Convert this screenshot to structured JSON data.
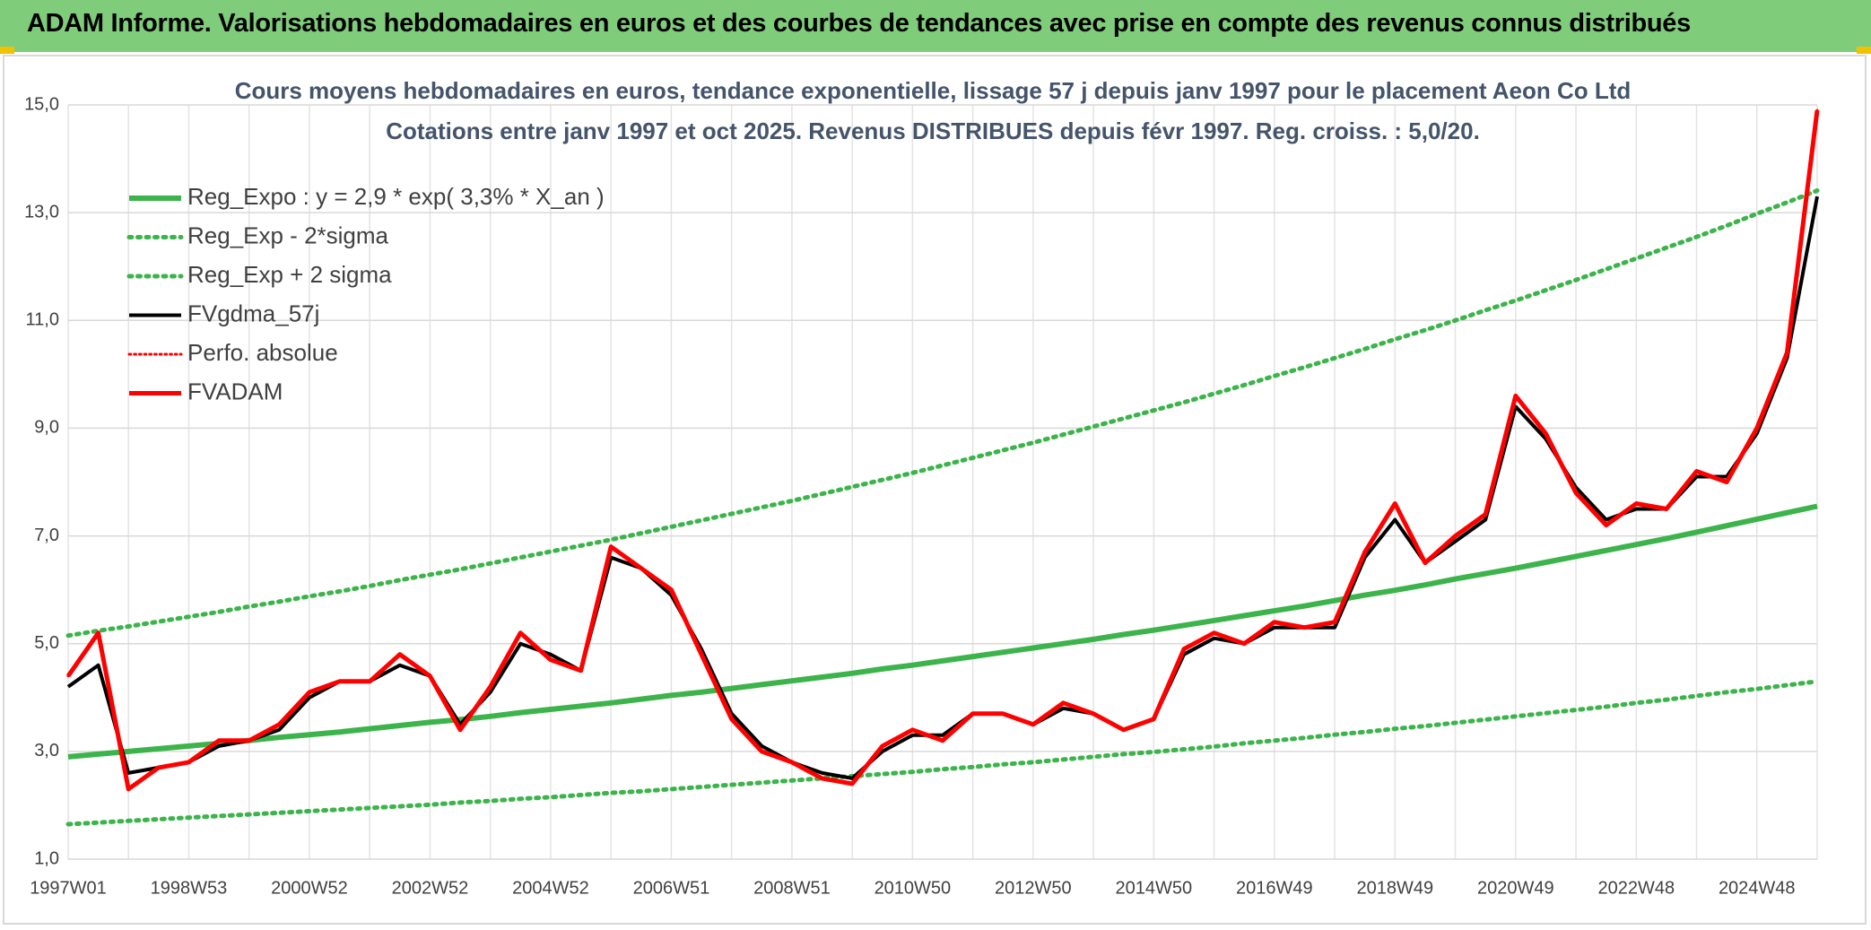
{
  "header": {
    "title": "ADAM Informe. Valorisations hebdomadaires en euros et des courbes de tendances avec prise en compte des revenus connus distribués"
  },
  "chart_data": {
    "type": "line",
    "title": "Cours moyens hebdomadaires en euros, tendance exponentielle, lissage 57 j depuis janv 1997 pour le placement Aeon Co Ltd",
    "subtitle": "Cotations entre janv 1997 et oct 2025. Revenus DISTRIBUES depuis févr 1997. Reg. croiss. : 5,0/20.",
    "categories": [
      "1997W01",
      null,
      null,
      null,
      "1998W53",
      null,
      null,
      null,
      "2000W52",
      null,
      null,
      null,
      "2002W52",
      null,
      null,
      null,
      "2004W52",
      null,
      null,
      null,
      "2006W51",
      null,
      null,
      null,
      "2008W51",
      null,
      null,
      null,
      "2010W50",
      null,
      null,
      null,
      "2012W50",
      null,
      null,
      null,
      "2014W50",
      null,
      null,
      null,
      "2016W49",
      null,
      null,
      null,
      "2018W49",
      null,
      null,
      null,
      "2020W49",
      null,
      null,
      null,
      "2022W48",
      null,
      null,
      null,
      "2024W48",
      null,
      null
    ],
    "ylim": [
      1,
      15
    ],
    "yticks": [
      {
        "value": 1,
        "label": "1,0"
      },
      {
        "value": 3,
        "label": "3,0"
      },
      {
        "value": 5,
        "label": "5,0"
      },
      {
        "value": 7,
        "label": "7,0"
      },
      {
        "value": 9,
        "label": "9,0"
      },
      {
        "value": 11,
        "label": "11,0"
      },
      {
        "value": 13,
        "label": "13,0"
      },
      {
        "value": 15,
        "label": "15,0"
      }
    ],
    "grid": true,
    "legend": "upper-left",
    "series": [
      {
        "name": "Reg_Expo : y = 2,9 * exp( 3,3% *  X_an )",
        "color": "#3cb44b",
        "style": "solid",
        "width": 6,
        "values": [
          2.9,
          2.95,
          3.0,
          3.05,
          3.1,
          3.15,
          3.2,
          3.26,
          3.31,
          3.36,
          3.42,
          3.48,
          3.54,
          3.59,
          3.65,
          3.72,
          3.78,
          3.84,
          3.9,
          3.97,
          4.04,
          4.1,
          4.17,
          4.24,
          4.31,
          4.38,
          4.45,
          4.53,
          4.6,
          4.68,
          4.76,
          4.84,
          4.92,
          5.0,
          5.08,
          5.17,
          5.25,
          5.34,
          5.43,
          5.52,
          5.61,
          5.7,
          5.8,
          5.9,
          5.99,
          6.09,
          6.2,
          6.3,
          6.4,
          6.51,
          6.62,
          6.73,
          6.84,
          6.95,
          7.07,
          7.19,
          7.31,
          7.43,
          7.55
        ]
      },
      {
        "name": "Reg_Exp - 2*sigma",
        "color": "#3cb44b",
        "style": "dotted",
        "width": 5,
        "values": [
          1.65,
          1.68,
          1.71,
          1.74,
          1.77,
          1.8,
          1.83,
          1.86,
          1.89,
          1.92,
          1.95,
          1.98,
          2.01,
          2.05,
          2.08,
          2.12,
          2.15,
          2.19,
          2.23,
          2.26,
          2.3,
          2.34,
          2.38,
          2.42,
          2.46,
          2.5,
          2.54,
          2.58,
          2.62,
          2.67,
          2.71,
          2.76,
          2.8,
          2.85,
          2.9,
          2.95,
          2.99,
          3.04,
          3.09,
          3.15,
          3.2,
          3.25,
          3.31,
          3.36,
          3.42,
          3.47,
          3.53,
          3.59,
          3.65,
          3.71,
          3.77,
          3.83,
          3.9,
          3.96,
          4.03,
          4.1,
          4.16,
          4.23,
          4.3
        ]
      },
      {
        "name": "Reg_Exp + 2 sigma",
        "color": "#3cb44b",
        "style": "dotted",
        "width": 5,
        "values": [
          5.15,
          5.24,
          5.32,
          5.41,
          5.5,
          5.59,
          5.69,
          5.78,
          5.88,
          5.97,
          6.07,
          6.18,
          6.28,
          6.38,
          6.49,
          6.6,
          6.71,
          6.82,
          6.93,
          7.05,
          7.17,
          7.29,
          7.41,
          7.53,
          7.65,
          7.78,
          7.91,
          8.04,
          8.17,
          8.31,
          8.45,
          8.59,
          8.73,
          8.88,
          9.03,
          9.18,
          9.33,
          9.48,
          9.64,
          9.8,
          9.97,
          10.13,
          10.3,
          10.47,
          10.65,
          10.82,
          11.0,
          11.19,
          11.37,
          11.56,
          11.75,
          11.95,
          12.15,
          12.35,
          12.55,
          12.76,
          12.98,
          13.19,
          13.41
        ]
      },
      {
        "name": "FVgdma_57j",
        "color": "#000000",
        "style": "solid",
        "width": 4,
        "values": [
          4.2,
          4.6,
          2.6,
          2.7,
          2.8,
          3.1,
          3.2,
          3.4,
          4.0,
          4.3,
          4.3,
          4.6,
          4.4,
          3.5,
          4.1,
          5.0,
          4.8,
          4.5,
          6.6,
          6.4,
          5.9,
          4.9,
          3.7,
          3.1,
          2.8,
          2.6,
          2.5,
          3.0,
          3.3,
          3.3,
          3.7,
          3.7,
          3.5,
          3.8,
          3.7,
          3.4,
          3.6,
          4.8,
          5.1,
          5.0,
          5.3,
          5.3,
          5.3,
          6.6,
          7.3,
          6.5,
          6.9,
          7.3,
          9.4,
          8.8,
          7.9,
          7.3,
          7.5,
          7.5,
          8.1,
          8.1,
          8.9,
          10.3,
          13.3
        ]
      },
      {
        "name": "Perfo. absolue",
        "color": "#ff0000",
        "style": "dotted",
        "width": 3,
        "values": [
          4.4,
          5.2,
          2.3,
          2.7,
          2.8,
          3.2,
          3.2,
          3.5,
          4.1,
          4.3,
          4.3,
          4.8,
          4.4,
          3.4,
          4.2,
          5.2,
          4.7,
          4.5,
          6.8,
          6.4,
          6.0,
          4.8,
          3.6,
          3.0,
          2.8,
          2.5,
          2.4,
          3.1,
          3.4,
          3.2,
          3.7,
          3.7,
          3.5,
          3.9,
          3.7,
          3.4,
          3.6,
          4.9,
          5.2,
          5.0,
          5.4,
          5.3,
          5.4,
          6.7,
          7.6,
          6.5,
          7.0,
          7.4,
          9.6,
          8.9,
          7.8,
          7.2,
          7.6,
          7.5,
          8.2,
          8.0,
          9.0,
          10.4,
          14.9
        ]
      },
      {
        "name": "FVADAM",
        "color": "#ff0000",
        "style": "solid",
        "width": 5,
        "values": [
          4.4,
          5.2,
          2.3,
          2.7,
          2.8,
          3.2,
          3.2,
          3.5,
          4.1,
          4.3,
          4.3,
          4.8,
          4.4,
          3.4,
          4.2,
          5.2,
          4.7,
          4.5,
          6.8,
          6.4,
          6.0,
          4.8,
          3.6,
          3.0,
          2.8,
          2.5,
          2.4,
          3.1,
          3.4,
          3.2,
          3.7,
          3.7,
          3.5,
          3.9,
          3.7,
          3.4,
          3.6,
          4.9,
          5.2,
          5.0,
          5.4,
          5.3,
          5.4,
          6.7,
          7.6,
          6.5,
          7.0,
          7.4,
          9.6,
          8.9,
          7.8,
          7.2,
          7.6,
          7.5,
          8.2,
          8.0,
          9.0,
          10.4,
          14.9
        ]
      }
    ]
  }
}
